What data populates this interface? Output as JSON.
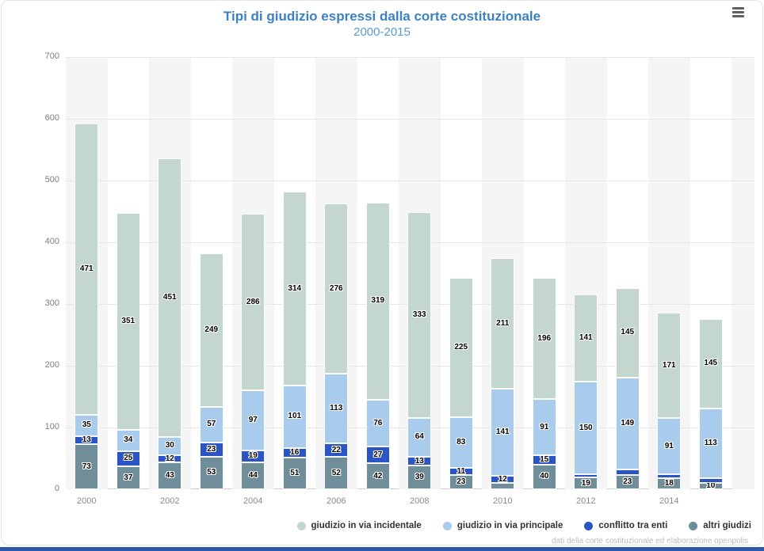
{
  "header": {
    "title": "Tipi di giudizio espressi dalla corte costituzionale",
    "subtitle": "2000-2015",
    "title_color": "#3b82c4",
    "subtitle_color": "#569bce",
    "menu_icon": "hamburger-icon"
  },
  "chart_data": {
    "type": "bar",
    "stacked": true,
    "title": "Tipi di giudizio espressi dalla corte costituzionale",
    "subtitle": "2000-2015",
    "categories": [
      "2000",
      "2001",
      "2002",
      "2003",
      "2004",
      "2005",
      "2006",
      "2007",
      "2008",
      "2009",
      "2010",
      "2011",
      "2012",
      "2013",
      "2014",
      "2015"
    ],
    "x_tick_labels": [
      "2000",
      "2002",
      "2004",
      "2006",
      "2008",
      "2010",
      "2012",
      "2014"
    ],
    "ylim": [
      0,
      700
    ],
    "y_ticks": [
      0,
      100,
      200,
      300,
      400,
      500,
      600,
      700
    ],
    "grid": true,
    "legend_position": "bottom-right",
    "series": [
      {
        "name": "giudizio in via incidentale",
        "color": "#c3d7cf",
        "values": [
          471,
          351,
          451,
          249,
          286,
          314,
          276,
          319,
          333,
          225,
          211,
          196,
          141,
          145,
          171,
          145
        ]
      },
      {
        "name": "giudizio in via principale",
        "color": "#a9cbec",
        "values": [
          35,
          34,
          30,
          57,
          97,
          101,
          113,
          76,
          64,
          83,
          141,
          91,
          150,
          149,
          91,
          113
        ]
      },
      {
        "name": "conflitto tra enti",
        "color": "#2b55c5",
        "values": [
          13,
          25,
          12,
          23,
          19,
          16,
          22,
          27,
          13,
          11,
          12,
          15,
          5,
          9,
          6,
          8
        ]
      },
      {
        "name": "altri giudizi",
        "color": "#6f8e9a",
        "values": [
          73,
          37,
          43,
          53,
          44,
          51,
          52,
          42,
          39,
          23,
          10,
          40,
          19,
          23,
          18,
          10
        ]
      }
    ],
    "stack_order_bottom_to_top": [
      3,
      2,
      1,
      0
    ],
    "hidden_labels": [
      [
        2,
        12
      ],
      [
        2,
        13
      ],
      [
        2,
        14
      ],
      [
        2,
        15
      ],
      [
        3,
        10
      ]
    ],
    "credit": "dati della corte costituzionale ed elaborazione openpolis"
  },
  "footer": {
    "bar_color": "#2e58a8"
  }
}
